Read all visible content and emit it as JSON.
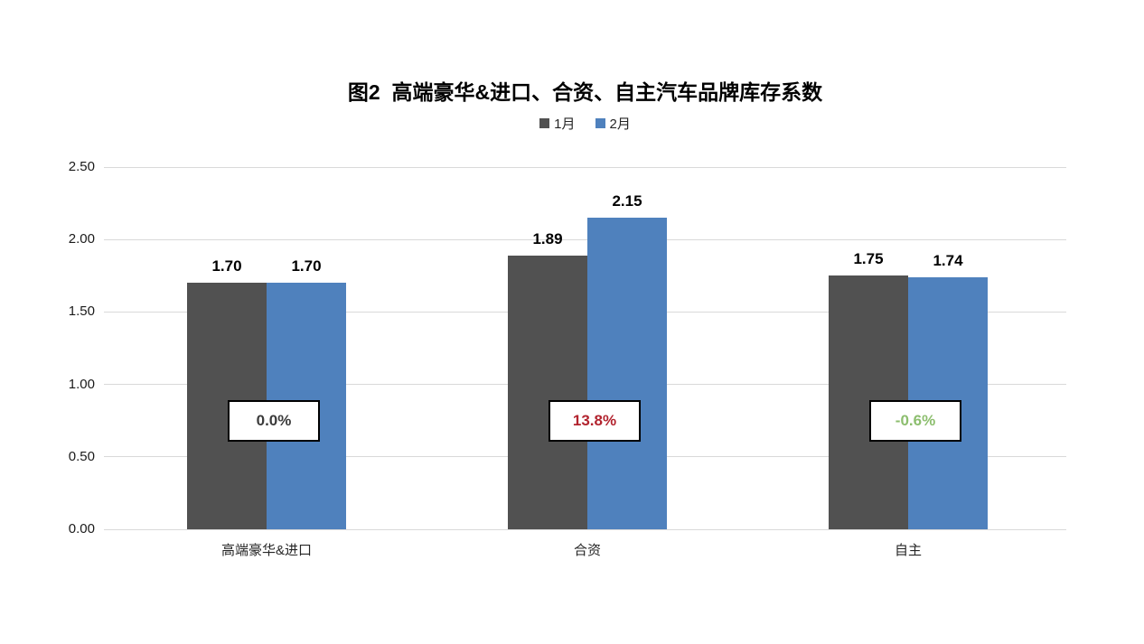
{
  "chart_data": {
    "type": "bar",
    "title": "图2  高端豪华&进口、合资、自主汽车品牌库存系数",
    "categories": [
      "高端豪华&进口",
      "合资",
      "自主"
    ],
    "series": [
      {
        "name": "1月",
        "color": "#515151",
        "values": [
          1.7,
          1.89,
          1.75
        ],
        "labels": [
          "1.70",
          "1.89",
          "1.75"
        ]
      },
      {
        "name": "2月",
        "color": "#4f81bd",
        "values": [
          1.7,
          2.15,
          1.74
        ],
        "labels": [
          "1.70",
          "2.15",
          "1.74"
        ]
      }
    ],
    "change_labels": [
      {
        "text": "0.0%",
        "color": "#3b3b3b"
      },
      {
        "text": "13.8%",
        "color": "#b2232e"
      },
      {
        "text": "-0.6%",
        "color": "#8cbe6e"
      }
    ],
    "y_ticks": [
      {
        "label": "2.50",
        "value": 2.5
      },
      {
        "label": "2.00",
        "value": 2.0
      },
      {
        "label": "1.50",
        "value": 1.5
      },
      {
        "label": "1.00",
        "value": 1.0
      },
      {
        "label": "0.50",
        "value": 0.5
      },
      {
        "label": "0.00",
        "value": 0.0
      }
    ],
    "ylim": [
      0,
      2.5
    ],
    "grid": true,
    "legend_position": "top",
    "gridline_color": "#d9d9d9",
    "xlabel": "",
    "ylabel": ""
  }
}
